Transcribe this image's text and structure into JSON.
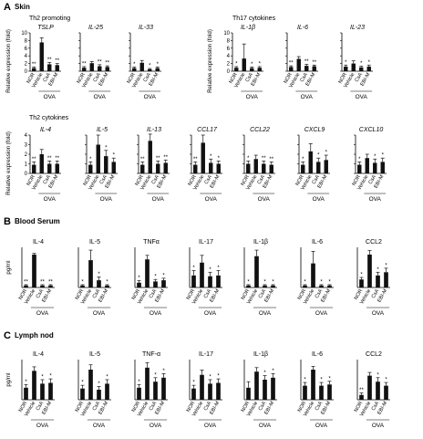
{
  "figure": {
    "categories": [
      "NOR",
      "Vehicle",
      "CsA",
      "EBI-M"
    ],
    "group_label": "OVA",
    "colors": {
      "bar": "#111111",
      "axis": "#000000"
    }
  },
  "panels": [
    {
      "letter": "A",
      "title": "Skin",
      "groups": [
        {
          "heading": "Th2 promoting",
          "ylabel": "Relative expression (fold)",
          "ticks": [
            0,
            2,
            4,
            6,
            8,
            10
          ],
          "ymax": 10,
          "genes": [
            {
              "name": "TSLP",
              "italic": true,
              "values": [
                0.8,
                7.5,
                1.8,
                1.6
              ],
              "err": [
                0.3,
                1.2,
                0.5,
                0.4
              ],
              "stars": [
                "**",
                "",
                "**",
                "**"
              ]
            },
            {
              "name": "IL-25",
              "italic": true,
              "values": [
                0.9,
                2.1,
                1.3,
                1.1
              ],
              "err": [
                0.3,
                0.4,
                0.4,
                0.3
              ],
              "stars": [
                "**",
                "",
                "**",
                "**"
              ]
            },
            {
              "name": "IL-33",
              "italic": true,
              "values": [
                0.8,
                2.2,
                0.5,
                0.8
              ],
              "err": [
                0.3,
                0.6,
                0.2,
                0.3
              ],
              "stars": [
                "*",
                "",
                "*",
                "*"
              ]
            }
          ]
        },
        {
          "heading": "Th17 cytokines",
          "ylabel": "Relative expression (fold)",
          "ticks": [
            0,
            2,
            4,
            6,
            8,
            10
          ],
          "ymax": 10,
          "genes": [
            {
              "name": "IL-1β",
              "italic": true,
              "values": [
                0.9,
                3.3,
                0.8,
                0.9
              ],
              "err": [
                0.3,
                3.8,
                0.3,
                0.3
              ],
              "stars": [
                "*",
                "",
                "*",
                "*"
              ]
            },
            {
              "name": "IL-6",
              "italic": true,
              "values": [
                1.1,
                3.2,
                1.4,
                1.3
              ],
              "err": [
                0.3,
                0.6,
                0.4,
                0.3
              ],
              "stars": [
                "**",
                "",
                "**",
                "**"
              ]
            },
            {
              "name": "IL-23",
              "italic": true,
              "values": [
                1.2,
                2.0,
                1.0,
                1.2
              ],
              "err": [
                0.4,
                0.7,
                0.3,
                0.4
              ],
              "stars": [
                "*",
                "",
                "*",
                "*"
              ]
            }
          ]
        },
        {
          "heading": "Th2 cytokines",
          "ylabel": "Relative expression (fold)",
          "ticks": [
            0,
            1,
            2,
            3,
            4
          ],
          "ymax": 4,
          "genes": [
            {
              "name": "IL-4",
              "italic": true,
              "values": [
                0.9,
                2.0,
                1.0,
                1.0
              ],
              "err": [
                0.3,
                0.5,
                0.3,
                0.3
              ],
              "stars": [
                "**",
                "",
                "**",
                "**"
              ]
            },
            {
              "name": "IL-5",
              "italic": true,
              "values": [
                0.9,
                3.0,
                1.8,
                1.2
              ],
              "err": [
                0.3,
                1.0,
                0.6,
                0.4
              ],
              "stars": [
                "*",
                "",
                "*",
                "*"
              ]
            },
            {
              "name": "IL-13",
              "italic": true,
              "values": [
                0.9,
                3.4,
                1.0,
                1.1
              ],
              "err": [
                0.3,
                0.7,
                0.3,
                0.3
              ],
              "stars": [
                "**",
                "",
                "**",
                "**"
              ]
            },
            {
              "name": "CCL17",
              "italic": true,
              "values": [
                0.9,
                3.2,
                1.1,
                1.0
              ],
              "err": [
                0.3,
                0.8,
                0.4,
                0.3
              ],
              "stars": [
                "**",
                "",
                "*",
                "*"
              ]
            },
            {
              "name": "CCL22",
              "italic": true,
              "values": [
                1.0,
                1.5,
                1.0,
                0.9
              ],
              "err": [
                0.3,
                0.4,
                0.3,
                0.3
              ],
              "stars": [
                "*",
                "",
                "**",
                "**"
              ]
            },
            {
              "name": "CXCL9",
              "italic": true,
              "values": [
                0.9,
                2.3,
                1.2,
                1.4
              ],
              "err": [
                0.3,
                0.8,
                0.4,
                0.5
              ],
              "stars": [
                "*",
                "",
                "*",
                "*"
              ]
            },
            {
              "name": "CXCL10",
              "italic": true,
              "values": [
                0.9,
                1.6,
                1.1,
                1.2
              ],
              "err": [
                0.3,
                0.4,
                0.4,
                0.4
              ],
              "stars": [
                "*",
                "",
                "*",
                "*"
              ]
            }
          ]
        }
      ]
    },
    {
      "letter": "B",
      "title": "Blood Serum",
      "groups": [
        {
          "heading": "",
          "ylabel": "pg/ml",
          "ticks": [],
          "ymax": 1,
          "genes": [
            {
              "name": "IL-4",
              "italic": false,
              "values": [
                0.05,
                0.82,
                0.05,
                0.05
              ],
              "err": [
                0.02,
                0.03,
                0.02,
                0.02
              ],
              "stars": [
                "**",
                "",
                "**",
                "**"
              ]
            },
            {
              "name": "IL-5",
              "italic": false,
              "values": [
                0.05,
                0.68,
                0.18,
                0.05
              ],
              "err": [
                0.02,
                0.25,
                0.08,
                0.02
              ],
              "stars": [
                "*",
                "",
                "*",
                "*"
              ]
            },
            {
              "name": "TNFα",
              "italic": false,
              "values": [
                0.12,
                0.7,
                0.15,
                0.18
              ],
              "err": [
                0.05,
                0.1,
                0.05,
                0.05
              ],
              "stars": [
                "*",
                "",
                "*",
                "*"
              ]
            },
            {
              "name": "IL-17",
              "italic": false,
              "values": [
                0.3,
                0.62,
                0.28,
                0.3
              ],
              "err": [
                0.12,
                0.18,
                0.1,
                0.12
              ],
              "stars": [
                "*",
                "",
                "*",
                "*"
              ]
            },
            {
              "name": "IL-1β",
              "italic": false,
              "values": [
                0.05,
                0.78,
                0.05,
                0.05
              ],
              "err": [
                0.02,
                0.15,
                0.02,
                0.02
              ],
              "stars": [
                "*",
                "",
                "*",
                "*"
              ]
            },
            {
              "name": "IL-6",
              "italic": false,
              "values": [
                0.05,
                0.6,
                0.05,
                0.05
              ],
              "err": [
                0.02,
                0.3,
                0.02,
                0.02
              ],
              "stars": [
                "*",
                "",
                "*",
                "*"
              ]
            },
            {
              "name": "CCL2",
              "italic": false,
              "values": [
                0.2,
                0.82,
                0.3,
                0.38
              ],
              "err": [
                0.05,
                0.1,
                0.08,
                0.1
              ],
              "stars": [
                "*",
                "",
                "*",
                "*"
              ]
            }
          ]
        }
      ]
    },
    {
      "letter": "C",
      "title": "Lymph nod",
      "groups": [
        {
          "heading": "",
          "ylabel": "pg/ml",
          "ticks": [],
          "ymax": 1,
          "genes": [
            {
              "name": "IL-4",
              "italic": false,
              "values": [
                0.3,
                0.72,
                0.4,
                0.42
              ],
              "err": [
                0.08,
                0.1,
                0.1,
                0.1
              ],
              "stars": [
                "*",
                "",
                "*",
                "*"
              ]
            },
            {
              "name": "IL-5",
              "italic": false,
              "values": [
                0.28,
                0.75,
                0.25,
                0.4
              ],
              "err": [
                0.08,
                0.12,
                0.08,
                0.1
              ],
              "stars": [
                "*",
                "",
                "*",
                "*"
              ]
            },
            {
              "name": "TNF-α",
              "italic": false,
              "values": [
                0.3,
                0.8,
                0.45,
                0.55
              ],
              "err": [
                0.08,
                0.12,
                0.1,
                0.1
              ],
              "stars": [
                "*",
                "",
                "*",
                "*"
              ]
            },
            {
              "name": "IL-17",
              "italic": false,
              "values": [
                0.28,
                0.62,
                0.4,
                0.42
              ],
              "err": [
                0.08,
                0.12,
                0.1,
                0.1
              ],
              "stars": [
                "*",
                "",
                "*",
                "*"
              ]
            },
            {
              "name": "IL-1β",
              "italic": false,
              "values": [
                0.3,
                0.7,
                0.5,
                0.55
              ],
              "err": [
                0.15,
                0.1,
                0.1,
                0.1
              ],
              "stars": [
                "",
                "",
                "*",
                "*"
              ]
            },
            {
              "name": "IL-6",
              "italic": false,
              "values": [
                0.35,
                0.75,
                0.35,
                0.38
              ],
              "err": [
                0.08,
                0.08,
                0.08,
                0.08
              ],
              "stars": [
                "*",
                "",
                "*",
                "*"
              ]
            },
            {
              "name": "CCL2",
              "italic": false,
              "values": [
                0.12,
                0.6,
                0.45,
                0.35
              ],
              "err": [
                0.05,
                0.08,
                0.1,
                0.08
              ],
              "stars": [
                "**",
                "",
                "*",
                "*"
              ]
            }
          ]
        }
      ]
    }
  ],
  "chart_data": {
    "type": "bar",
    "categories": [
      "NOR",
      "Vehicle",
      "CsA",
      "EBI-M"
    ],
    "series_note_units": [
      "Relative expression (fold)",
      "pg/ml"
    ]
  }
}
